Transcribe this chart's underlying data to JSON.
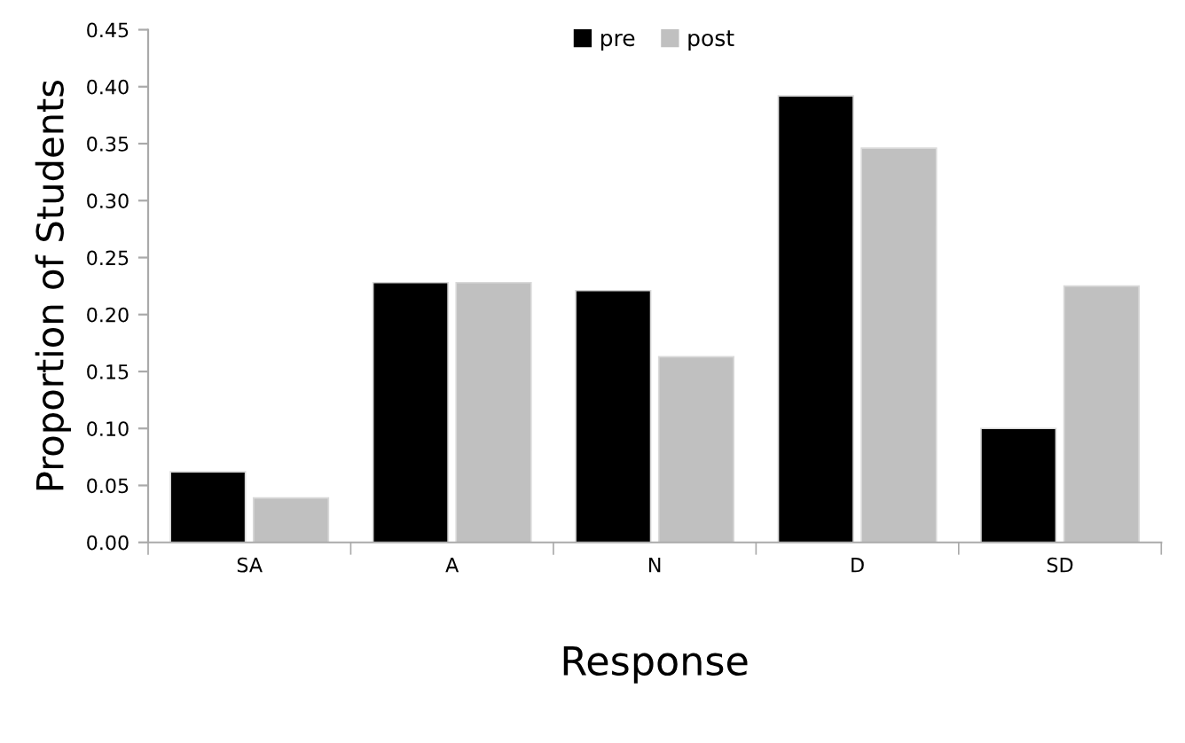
{
  "chart_data": {
    "type": "bar",
    "xlabel": "Response",
    "ylabel": "Proportion of Students",
    "categories": [
      "SA",
      "A",
      "N",
      "D",
      "SD"
    ],
    "series": [
      {
        "name": "pre",
        "color": "#000000",
        "values": [
          0.062,
          0.228,
          0.221,
          0.392,
          0.1
        ]
      },
      {
        "name": "post",
        "color": "#c0c0c0",
        "values": [
          0.039,
          0.228,
          0.163,
          0.346,
          0.225
        ]
      }
    ],
    "ylim": [
      0,
      0.45
    ],
    "yticks": [
      {
        "value": 0,
        "label": "0.00"
      },
      {
        "value": 0.05,
        "label": "0.05"
      },
      {
        "value": 0.1,
        "label": "0.10"
      },
      {
        "value": 0.15,
        "label": "0.15"
      },
      {
        "value": 0.2,
        "label": "0.20"
      },
      {
        "value": 0.25,
        "label": "0.25"
      },
      {
        "value": 0.3,
        "label": "0.30"
      },
      {
        "value": 0.35,
        "label": "0.35"
      },
      {
        "value": 0.4,
        "label": "0.40"
      },
      {
        "value": 0.45,
        "label": "0.45"
      }
    ],
    "grid": false,
    "legend": "top"
  }
}
